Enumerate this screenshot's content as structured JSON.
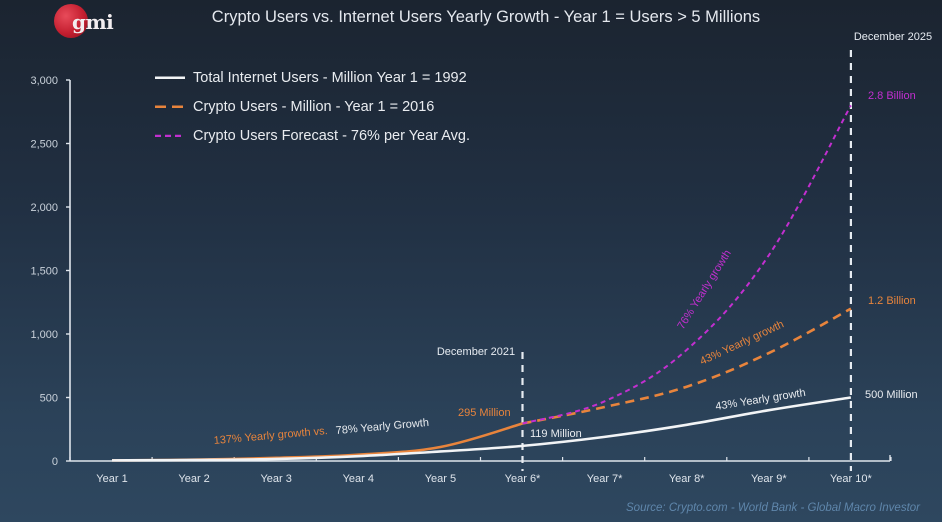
{
  "logo": {
    "text": "gmi"
  },
  "header": {
    "title": "Crypto Users vs. Internet Users Yearly Growth - Year 1 = Users > 5 Millions"
  },
  "legend": [
    {
      "label": "Total Internet Users - Million Year 1 = 1992",
      "color": "#f2f4f6",
      "style": "solid"
    },
    {
      "label": "Crypto Users - Million - Year 1 = 2016",
      "color": "#e8843c",
      "style": "dashed"
    },
    {
      "label": "Crypto Users Forecast - 76% per Year Avg.",
      "color": "#c22fd0",
      "style": "dotted"
    }
  ],
  "source": "Source: Crypto.com - World Bank - Global Macro Investor",
  "chart_data": {
    "type": "line",
    "title": "Crypto Users vs. Internet Users Yearly Growth - Year 1 = Users > 5 Millions",
    "xlabel": "",
    "ylabel": "",
    "ylim": [
      0,
      3000
    ],
    "yticks": [
      0,
      500,
      1000,
      1500,
      2000,
      2500,
      3000
    ],
    "ytick_labels": [
      "0",
      "500",
      "1,000",
      "1,500",
      "2,000",
      "2,500",
      "3,000"
    ],
    "categories": [
      "Year 1",
      "Year 2",
      "Year 3",
      "Year 4",
      "Year 5",
      "Year 6*",
      "Year 7*",
      "Year 8*",
      "Year 9*",
      "Year 10*"
    ],
    "grid": false,
    "legend_position": "top-left",
    "series": [
      {
        "name": "Total Internet Users - Million Year 1 = 1992",
        "color": "#f2f4f6",
        "style": "solid",
        "values": [
          5,
          8,
          16,
          38,
          75,
          119,
          190,
          285,
          400,
          500
        ]
      },
      {
        "name": "Crypto Users - Million - Year 1 = 2016",
        "color": "#e8843c",
        "style": "solid",
        "values": [
          5,
          10,
          25,
          50,
          110,
          295,
          null,
          null,
          null,
          null
        ]
      },
      {
        "name": "Crypto Users - Million (projection at 43%)",
        "color": "#e8843c",
        "style": "dashed",
        "values": [
          null,
          null,
          null,
          null,
          null,
          295,
          425,
          585,
          850,
          1200
        ]
      },
      {
        "name": "Crypto Users Forecast - 76% per Year Avg.",
        "color": "#c22fd0",
        "style": "dotted",
        "values": [
          null,
          null,
          null,
          null,
          null,
          295,
          470,
          875,
          1620,
          2800
        ]
      }
    ],
    "markers": [
      {
        "category": "Year 6*",
        "label": "December 2021"
      },
      {
        "category": "Year 10*",
        "label": "December 2025"
      }
    ],
    "annotations": [
      {
        "id": "crypto-y6",
        "text": "295 Million",
        "color": "#e8843c"
      },
      {
        "id": "internet-y6",
        "text": "119 Million",
        "color": "#e9ecf0"
      },
      {
        "id": "forecast-y10",
        "text": "2.8 Billion",
        "color": "#c22fd0"
      },
      {
        "id": "crypto-y10",
        "text": "1.2 Billion",
        "color": "#e8843c"
      },
      {
        "id": "internet-y10",
        "text": "500 Million",
        "color": "#e9ecf0"
      },
      {
        "id": "growth-early-a",
        "text": "137% Yearly growth vs.",
        "color": "#e8843c"
      },
      {
        "id": "growth-early-b",
        "text": "78% Yearly Growth",
        "color": "#e9ecf0"
      },
      {
        "id": "growth-forecast",
        "text": "76% Yearly growth",
        "color": "#c22fd0"
      },
      {
        "id": "growth-crypto",
        "text": "43% Yearly growth",
        "color": "#e8843c"
      },
      {
        "id": "growth-internet",
        "text": "43% Yearly growth",
        "color": "#e9ecf0"
      }
    ]
  }
}
